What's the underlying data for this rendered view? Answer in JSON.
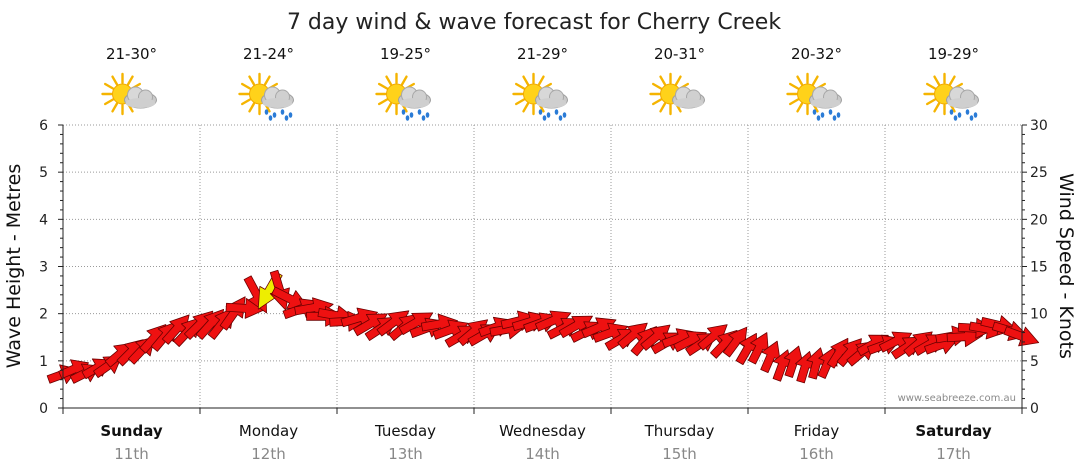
{
  "chart_data": {
    "type": "line",
    "title": "7 day wind & wave forecast for Cherry Creek",
    "ylabel_left": "Wave Height - Metres",
    "ylabel_right": "Wind Speed - Knots",
    "ylim_left": [
      0,
      6
    ],
    "ylim_right": [
      0,
      30
    ],
    "yticks_left": [
      "0",
      "1",
      "2",
      "3",
      "4",
      "5",
      "6"
    ],
    "yticks_right": [
      "0",
      "5",
      "10",
      "15",
      "20",
      "25",
      "30"
    ],
    "grid": true,
    "watermark": "www.seabreeze.com.au",
    "days": [
      {
        "name": "Sunday",
        "date": "11th",
        "temp": "21-30°",
        "weather": "partly-cloudy",
        "bold": true
      },
      {
        "name": "Monday",
        "date": "12th",
        "temp": "21-24°",
        "weather": "showers",
        "bold": false
      },
      {
        "name": "Tuesday",
        "date": "13th",
        "temp": "19-25°",
        "weather": "showers",
        "bold": false
      },
      {
        "name": "Wednesday",
        "date": "14th",
        "temp": "21-29°",
        "weather": "showers",
        "bold": false
      },
      {
        "name": "Thursday",
        "date": "15th",
        "temp": "20-31°",
        "weather": "partly-cloudy",
        "bold": false
      },
      {
        "name": "Friday",
        "date": "16th",
        "temp": "20-32°",
        "weather": "showers",
        "bold": false
      },
      {
        "name": "Saturday",
        "date": "17th",
        "temp": "19-29°",
        "weather": "showers",
        "bold": true
      }
    ],
    "x_hours": [
      0,
      6,
      12,
      18,
      24,
      30,
      36,
      42,
      48,
      54,
      60,
      66,
      72,
      78,
      84,
      90,
      96,
      102,
      108,
      114,
      120,
      126,
      132,
      138,
      144,
      150,
      156,
      162,
      168
    ],
    "series": [
      {
        "name": "Wind Speed (knots)",
        "color": "#ee1111",
        "highlight_color": "#eeee00",
        "values": [
          4.0,
          4.0,
          6.0,
          8.0,
          8.5,
          10.0,
          12.5,
          11.0,
          9.5,
          9.0,
          9.0,
          8.5,
          8.0,
          8.5,
          9.5,
          8.5,
          8.0,
          7.5,
          7.0,
          7.5,
          6.5,
          5.0,
          4.5,
          6.0,
          7.0,
          6.5,
          7.5,
          8.5,
          8.0
        ],
        "direction_deg": [
          250,
          240,
          225,
          220,
          225,
          215,
          30,
          250,
          280,
          240,
          230,
          260,
          230,
          260,
          250,
          240,
          250,
          220,
          250,
          230,
          210,
          200,
          195,
          220,
          250,
          230,
          260,
          280,
          290
        ],
        "highlight_index": [
          6
        ]
      }
    ]
  }
}
